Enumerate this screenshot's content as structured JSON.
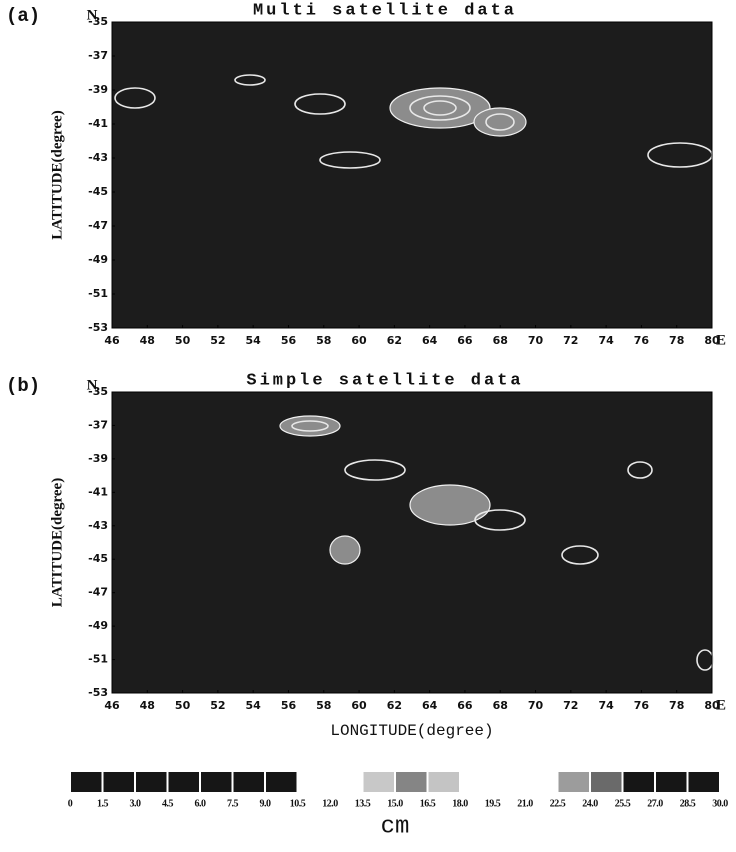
{
  "chart_data": [
    {
      "type": "contour",
      "panel_label": "(a)",
      "title": "Multi satellite data",
      "north_label": "N",
      "east_label": "E",
      "ylabel": "LATITUDE(degree)",
      "xlim": [
        46,
        80
      ],
      "xticks": [
        46,
        48,
        50,
        52,
        54,
        56,
        58,
        60,
        62,
        64,
        66,
        68,
        70,
        72,
        74,
        76,
        78,
        80
      ],
      "ylim": [
        -53,
        -35
      ],
      "yticks": [
        -35,
        -37,
        -39,
        -41,
        -43,
        -45,
        -47,
        -49,
        -51,
        -53
      ]
    },
    {
      "type": "contour",
      "panel_label": "(b)",
      "title": "Simple satellite data",
      "north_label": "N",
      "east_label": "E",
      "ylabel": "LATITUDE(degree)",
      "xlabel": "LONGITUDE(degree)",
      "xlim": [
        46,
        80
      ],
      "xticks": [
        46,
        48,
        50,
        52,
        54,
        56,
        58,
        60,
        62,
        64,
        66,
        68,
        70,
        72,
        74,
        76,
        78,
        80
      ],
      "ylim": [
        -53,
        -35
      ],
      "yticks": [
        -35,
        -37,
        -39,
        -41,
        -43,
        -45,
        -47,
        -49,
        -51,
        -53
      ]
    },
    {
      "type": "colorbar",
      "unit": "cm",
      "xlim": [
        0,
        30
      ],
      "ticks": [
        0,
        1.5,
        {
          "value": 3,
          "label": "3.0"
        },
        4.5,
        {
          "value": 6,
          "label": "6.0"
        },
        7.5,
        {
          "value": 9,
          "label": "9.0"
        },
        10.5,
        {
          "value": 12,
          "label": "12.0"
        },
        13.5,
        {
          "value": 15,
          "label": "15.0"
        },
        16.5,
        {
          "value": 18,
          "label": "18.0"
        },
        19.5,
        {
          "value": 21,
          "label": "21.0"
        },
        22.5,
        {
          "value": 24,
          "label": "24.0"
        },
        25.5,
        {
          "value": 27,
          "label": "27.0"
        },
        28.5,
        {
          "value": 30,
          "label": "30.0"
        }
      ],
      "colors": [
        "#161616",
        "#161616",
        "#161616",
        "#161616",
        "#161616",
        "#161616",
        "#161616",
        null,
        null,
        "#c8c8c8",
        "#858585",
        "#c4c4c4",
        null,
        null,
        null,
        "#9c9c9c",
        "#6a6a6a",
        "#161616",
        "#161616",
        "#161616"
      ]
    }
  ]
}
